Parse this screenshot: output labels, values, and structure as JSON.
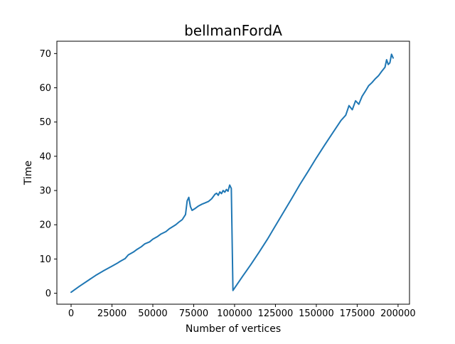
{
  "chart_data": {
    "type": "line",
    "title": "bellmanFordA",
    "xlabel": "Number of vertices",
    "ylabel": "Time",
    "xlim": [
      -8700,
      207000
    ],
    "ylim": [
      -3.2,
      73.6
    ],
    "xticks": [
      0,
      25000,
      50000,
      75000,
      100000,
      125000,
      150000,
      175000,
      200000
    ],
    "yticks": [
      0,
      10,
      20,
      30,
      40,
      50,
      60,
      70
    ],
    "grid": false,
    "line_color": "#1f77b4",
    "series": [
      {
        "x": [
          0,
          5000,
          10000,
          15000,
          20000,
          25000,
          28000,
          30000,
          33000,
          35000,
          38000,
          40000,
          43000,
          45000,
          48000,
          50000,
          53000,
          55000,
          58000,
          60000,
          62000,
          64000,
          66000,
          68000,
          70000,
          71000,
          72000,
          73000,
          74000,
          76000,
          78000,
          80000,
          82000,
          84000,
          86000,
          88000,
          89000,
          90000,
          91000,
          92000,
          93000,
          94000,
          95000,
          96000,
          97000,
          98000,
          99000,
          100000,
          105000,
          110000,
          115000,
          120000,
          125000,
          130000,
          135000,
          140000,
          145000,
          150000,
          155000,
          160000,
          165000,
          168000,
          170000,
          172000,
          174000,
          176000,
          178000,
          180000,
          182000,
          184000,
          186000,
          188000,
          190000,
          192000,
          193000,
          194000,
          195000,
          196000,
          197000
        ],
        "values": [
          0.3,
          2.0,
          3.6,
          5.2,
          6.6,
          7.9,
          8.7,
          9.3,
          10.1,
          11.2,
          12.0,
          12.7,
          13.6,
          14.4,
          15.0,
          15.8,
          16.6,
          17.3,
          18.0,
          18.8,
          19.4,
          20.0,
          20.8,
          21.5,
          23.0,
          27.0,
          28.0,
          25.3,
          24.2,
          24.8,
          25.5,
          26.0,
          26.4,
          26.8,
          27.6,
          28.9,
          29.2,
          28.6,
          29.6,
          29.1,
          30.0,
          29.5,
          30.3,
          29.8,
          31.6,
          30.6,
          0.8,
          1.5,
          5.0,
          8.4,
          12.0,
          15.7,
          19.7,
          23.7,
          27.7,
          31.8,
          35.6,
          39.5,
          43.2,
          46.8,
          50.4,
          52.0,
          54.8,
          53.6,
          56.2,
          55.2,
          57.5,
          59.0,
          60.6,
          61.5,
          62.6,
          63.5,
          64.8,
          66.0,
          68.2,
          66.8,
          67.3,
          69.8,
          68.7
        ]
      }
    ]
  }
}
